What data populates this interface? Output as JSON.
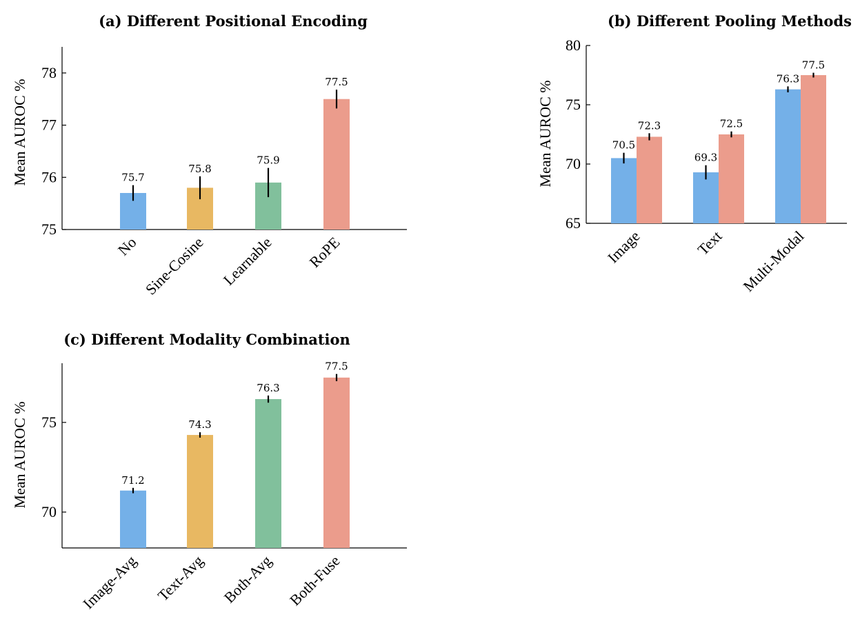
{
  "colors": {
    "blue": "#74b0e8",
    "orange": "#e8b862",
    "green": "#81c09c",
    "red": "#eb9c8c"
  },
  "chart_data": [
    {
      "id": "a",
      "type": "bar",
      "title": "(a) Different Positional Encoding",
      "ylabel": "Mean AUROC %",
      "ylim": [
        75,
        78.5
      ],
      "yticks": [
        75,
        76,
        77,
        78
      ],
      "grid": false,
      "categories": [
        "No",
        "Sine-Cosine",
        "Learnable",
        "RoPE"
      ],
      "values": [
        75.7,
        75.8,
        75.9,
        77.5
      ],
      "errors": [
        0.15,
        0.22,
        0.28,
        0.18
      ],
      "data_labels": [
        "75.7",
        "75.8",
        "75.9",
        "77.5"
      ],
      "bar_colors": [
        "blue",
        "orange",
        "green",
        "red"
      ]
    },
    {
      "id": "b",
      "type": "bar",
      "title": "(b) Different Pooling Methods",
      "ylabel": "Mean AUROC %",
      "ylim": [
        65,
        80
      ],
      "yticks": [
        65,
        70,
        75,
        80
      ],
      "grid": false,
      "categories": [
        "Image",
        "Text",
        "Multi-Modal"
      ],
      "series": [
        {
          "color": "blue",
          "values": [
            70.5,
            69.3,
            76.3
          ],
          "errors": [
            0.45,
            0.6,
            0.25
          ],
          "data_labels": [
            "70.5",
            "69.3",
            "76.3"
          ]
        },
        {
          "color": "red",
          "values": [
            72.3,
            72.5,
            77.5
          ],
          "errors": [
            0.3,
            0.25,
            0.2
          ],
          "data_labels": [
            "72.3",
            "72.5",
            "77.5"
          ]
        }
      ]
    },
    {
      "id": "c",
      "type": "bar",
      "title": "(c) Different Modality Combination",
      "ylabel": "Mean AUROC %",
      "ylim": [
        68,
        78.3
      ],
      "yticks": [
        70,
        75
      ],
      "grid": false,
      "categories": [
        "Image-Avg",
        "Text-Avg",
        "Both-Avg",
        "Both-Fuse"
      ],
      "values": [
        71.2,
        74.3,
        76.3,
        77.5
      ],
      "errors": [
        0.15,
        0.15,
        0.2,
        0.2
      ],
      "data_labels": [
        "71.2",
        "74.3",
        "76.3",
        "77.5"
      ],
      "bar_colors": [
        "blue",
        "orange",
        "green",
        "red"
      ]
    }
  ]
}
